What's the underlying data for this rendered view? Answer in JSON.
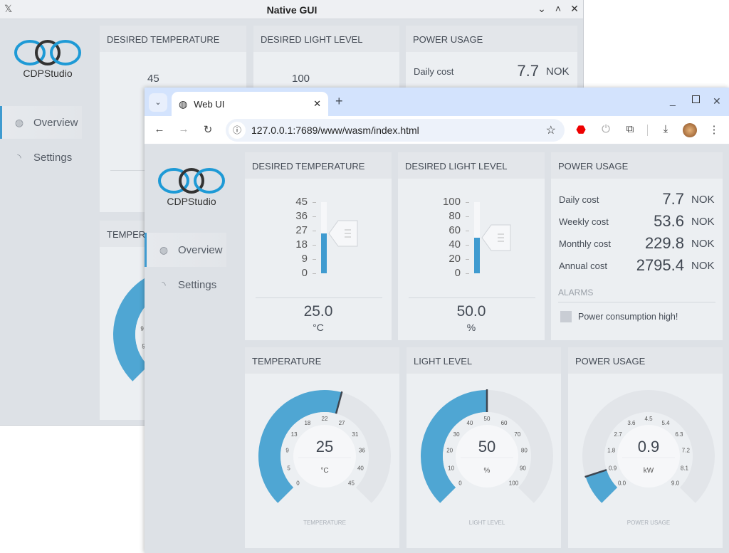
{
  "native": {
    "title": "Native GUI",
    "logo_text": "CDPStudio",
    "sidebar": [
      {
        "label": "Overview",
        "icon": "globe-icon",
        "active": true
      },
      {
        "label": "Settings",
        "icon": "gauge-icon"
      }
    ],
    "panels": {
      "desired_temperature": "DESIRED TEMPERATURE",
      "desired_light": "DESIRED LIGHT LEVEL",
      "power_usage": "POWER USAGE",
      "temperature": "TEMPERA"
    },
    "temp_scale_top": "45",
    "light_scale_top": "100",
    "daily_cost": {
      "label": "Daily cost",
      "value": "7.7",
      "unit": "NOK"
    }
  },
  "browser": {
    "tab_title": "Web UI",
    "url": "127.0.0.1:7689/www/wasm/index.html",
    "logo_text": "CDPStudio",
    "sidebar": [
      {
        "label": "Overview",
        "icon": "globe-icon",
        "active": true
      },
      {
        "label": "Settings",
        "icon": "gauge-icon"
      }
    ],
    "desired_temperature": {
      "title": "DESIRED TEMPERATURE",
      "ticks": [
        "45",
        "36",
        "27",
        "18",
        "9",
        "0"
      ],
      "min": 0,
      "max": 45,
      "value": 25,
      "value_text": "25.0",
      "unit": "°C"
    },
    "desired_light": {
      "title": "DESIRED LIGHT LEVEL",
      "ticks": [
        "100",
        "80",
        "60",
        "40",
        "20",
        "0"
      ],
      "min": 0,
      "max": 100,
      "value": 50,
      "value_text": "50.0",
      "unit": "%"
    },
    "power_usage": {
      "title": "POWER USAGE",
      "rows": [
        {
          "label": "Daily cost",
          "value": "7.7",
          "unit": "NOK"
        },
        {
          "label": "Weekly cost",
          "value": "53.6",
          "unit": "NOK"
        },
        {
          "label": "Monthly cost",
          "value": "229.8",
          "unit": "NOK"
        },
        {
          "label": "Annual cost",
          "value": "2795.4",
          "unit": "NOK"
        }
      ],
      "alarms_title": "ALARMS",
      "alarm": {
        "label": "Power consumption high!",
        "active": false
      }
    },
    "gauges": [
      {
        "title": "TEMPERATURE",
        "min": 0,
        "max": 45,
        "value": 25,
        "value_text": "25",
        "unit": "°C",
        "caption": "TEMPERATURE",
        "ticks": [
          "0",
          "5",
          "9",
          "13",
          "18",
          "22",
          "27",
          "31",
          "36",
          "40",
          "45"
        ]
      },
      {
        "title": "LIGHT LEVEL",
        "min": 0,
        "max": 100,
        "value": 50,
        "value_text": "50",
        "unit": "%",
        "caption": "LIGHT LEVEL",
        "ticks": [
          "0",
          "10",
          "20",
          "30",
          "40",
          "50",
          "60",
          "70",
          "80",
          "90",
          "100"
        ]
      },
      {
        "title": "POWER USAGE",
        "min": 0,
        "max": 9,
        "value": 0.9,
        "value_text": "0.9",
        "unit": "kW",
        "caption": "POWER USAGE",
        "ticks": [
          "0.0",
          "0.9",
          "1.8",
          "2.7",
          "3.6",
          "4.5",
          "5.4",
          "6.3",
          "7.2",
          "8.1",
          "9.0"
        ]
      }
    ]
  },
  "colors": {
    "accent": "#4fa6d3",
    "track": "#e2e5e9",
    "needle": "#3d4550"
  }
}
